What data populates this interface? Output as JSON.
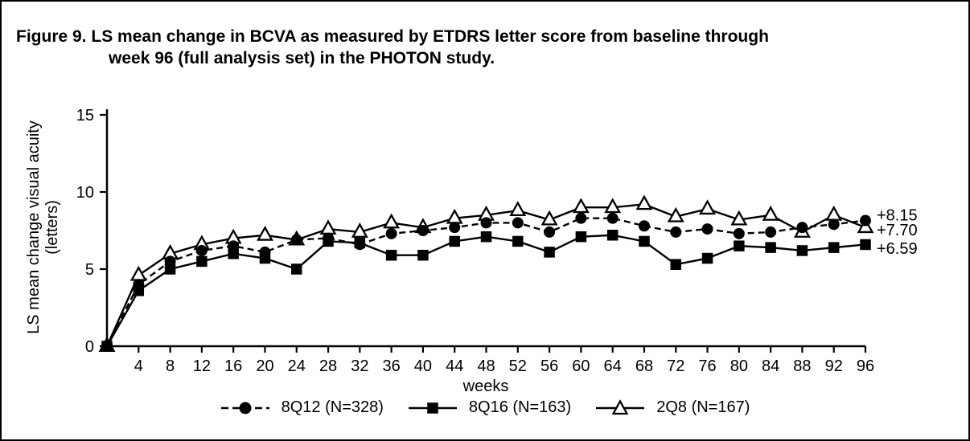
{
  "figure_title": {
    "prefix": "Figure 9.",
    "line1": "LS mean change in BCVA as measured by ETDRS letter score from baseline through",
    "line2": "week 96 (full analysis set) in the PHOTON study."
  },
  "chart_data": {
    "type": "line",
    "xlabel": "weeks",
    "ylabel_line1": "LS mean change visual acuity",
    "ylabel_line2": "(letters)",
    "xlim": [
      0,
      96
    ],
    "ylim": [
      0,
      15
    ],
    "xticks": [
      4,
      8,
      12,
      16,
      20,
      24,
      28,
      32,
      36,
      40,
      44,
      48,
      52,
      56,
      60,
      64,
      68,
      72,
      76,
      80,
      84,
      88,
      92,
      96
    ],
    "yticks": [
      0,
      5,
      10,
      15
    ],
    "grid": false,
    "legend_position": "bottom",
    "colors": {
      "line": "#000000",
      "background": "#ffffff",
      "open_marker_fill": "#ffffff"
    },
    "x": [
      0,
      4,
      8,
      12,
      16,
      20,
      24,
      28,
      32,
      36,
      40,
      44,
      48,
      52,
      56,
      60,
      64,
      68,
      72,
      76,
      80,
      84,
      88,
      92,
      96
    ],
    "series": [
      {
        "key": "8q12",
        "name": "8Q12 (N=328)",
        "marker": "circle-filled",
        "line": "dashed",
        "end_label": "+8.15",
        "values": [
          0,
          4.0,
          5.5,
          6.2,
          6.5,
          6.1,
          6.9,
          7.0,
          6.6,
          7.3,
          7.5,
          7.7,
          8.0,
          8.0,
          7.4,
          8.3,
          8.3,
          7.8,
          7.4,
          7.6,
          7.3,
          7.4,
          7.7,
          7.9,
          8.15
        ]
      },
      {
        "key": "8q16",
        "name": "8Q16 (N=163)",
        "marker": "square-filled",
        "line": "solid",
        "end_label": "+6.59",
        "values": [
          0,
          3.6,
          5.0,
          5.5,
          6.0,
          5.7,
          5.0,
          6.8,
          6.7,
          5.9,
          5.9,
          6.8,
          7.1,
          6.8,
          6.1,
          7.1,
          7.2,
          6.8,
          5.3,
          5.7,
          6.5,
          6.4,
          6.2,
          6.4,
          6.59
        ]
      },
      {
        "key": "2q8",
        "name": "2Q8 (N=167)",
        "marker": "triangle-open",
        "line": "solid",
        "end_label": "+7.70",
        "values": [
          0,
          4.6,
          6.0,
          6.6,
          7.0,
          7.2,
          6.9,
          7.6,
          7.4,
          8.0,
          7.7,
          8.3,
          8.5,
          8.8,
          8.2,
          9.0,
          9.0,
          9.2,
          8.4,
          8.9,
          8.2,
          8.5,
          7.4,
          8.5,
          7.7
        ]
      }
    ]
  }
}
